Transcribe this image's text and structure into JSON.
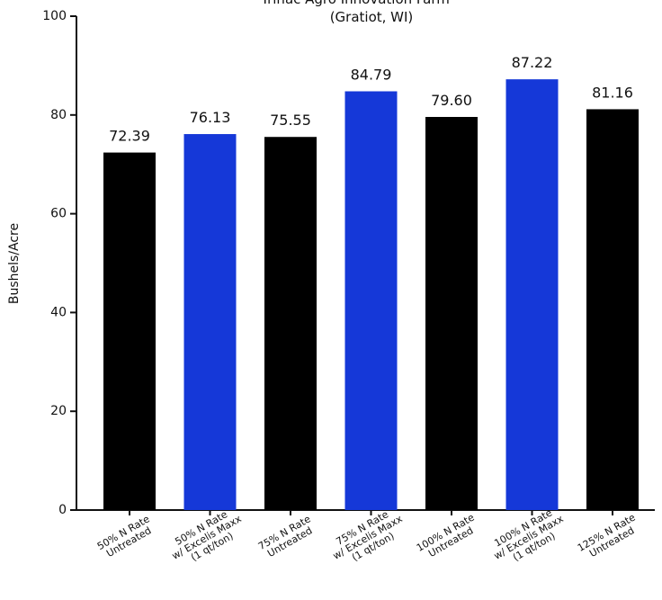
{
  "chart_data": {
    "type": "bar",
    "title_lines": [
      "Trinac Agro Innovation Farm",
      "(Gratiot, WI)"
    ],
    "ylabel": "Bushels/Acre",
    "xlabel": "",
    "ylim": [
      0,
      100
    ],
    "yticks": [
      0,
      20,
      40,
      60,
      80,
      100
    ],
    "grid": false,
    "colors": {
      "untreated": "#000000",
      "treated": "#1538d8"
    },
    "bars": [
      {
        "label_lines": [
          "50% N Rate",
          "Untreated"
        ],
        "value": 72.39,
        "value_label": "72.39",
        "group": "untreated"
      },
      {
        "label_lines": [
          "50% N Rate",
          "w/ Excelis Maxx",
          "(1 qt/ton)"
        ],
        "value": 76.13,
        "value_label": "76.13",
        "group": "treated"
      },
      {
        "label_lines": [
          "75% N Rate",
          "Untreated"
        ],
        "value": 75.55,
        "value_label": "75.55",
        "group": "untreated"
      },
      {
        "label_lines": [
          "75% N Rate",
          "w/ Excelis Maxx",
          "(1 qt/ton)"
        ],
        "value": 84.79,
        "value_label": "84.79",
        "group": "treated"
      },
      {
        "label_lines": [
          "100% N Rate",
          "Untreated"
        ],
        "value": 79.6,
        "value_label": "79.60",
        "group": "untreated"
      },
      {
        "label_lines": [
          "100% N Rate",
          "w/ Excelis Maxx",
          "(1 qt/ton)"
        ],
        "value": 87.22,
        "value_label": "87.22",
        "group": "treated"
      },
      {
        "label_lines": [
          "125% N Rate",
          "Untreated"
        ],
        "value": 81.16,
        "value_label": "81.16",
        "group": "untreated"
      }
    ]
  }
}
